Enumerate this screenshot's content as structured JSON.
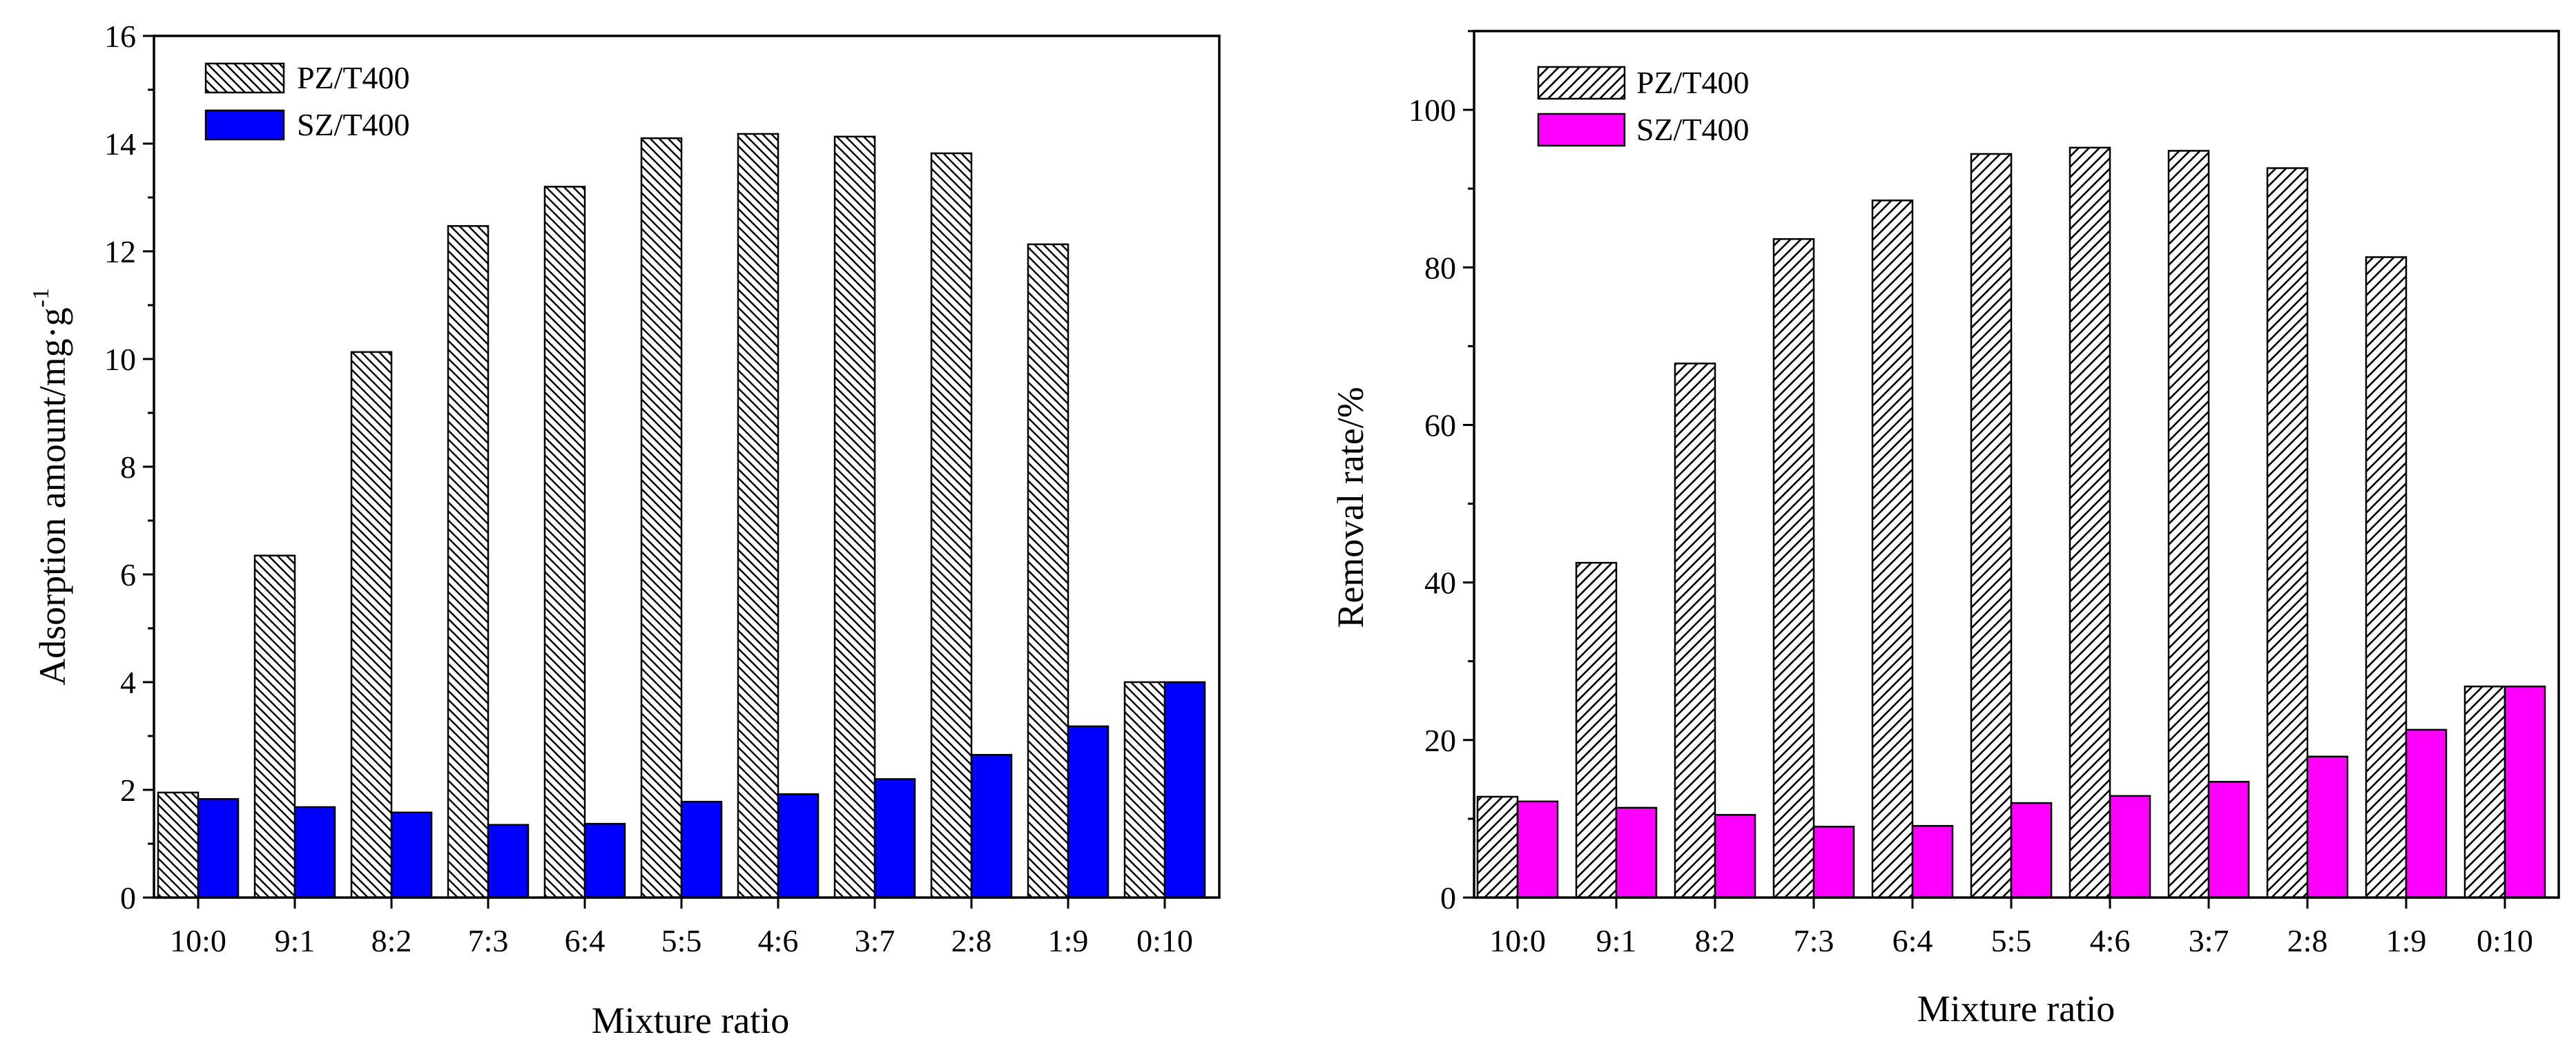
{
  "chart_data": [
    {
      "type": "bar",
      "categories": [
        "10:0",
        "9:1",
        "8:2",
        "7:3",
        "6:4",
        "5:5",
        "4:6",
        "3:7",
        "2:8",
        "1:9",
        "0:10"
      ],
      "series": [
        {
          "name": "PZ/T400",
          "values": [
            1.95,
            6.35,
            10.13,
            12.47,
            13.2,
            14.1,
            14.18,
            14.13,
            13.82,
            12.13,
            4.0
          ],
          "color": "#ffffff",
          "pattern": "backslash-hatch"
        },
        {
          "name": "SZ/T400",
          "values": [
            1.83,
            1.68,
            1.58,
            1.35,
            1.37,
            1.78,
            1.92,
            2.2,
            2.65,
            3.18,
            4.0
          ],
          "color": "#0000ff"
        }
      ],
      "xlabel": "Mixture ratio",
      "ylabel": "Adsorption amount/mg·g",
      "ylabel_sup": "-1",
      "ylim": [
        0,
        16
      ],
      "yticks": [
        "0",
        "2",
        "4",
        "6",
        "8",
        "10",
        "12",
        "14",
        "16"
      ],
      "legend_position": "top-left"
    },
    {
      "type": "bar",
      "categories": [
        "10:0",
        "9:1",
        "8:2",
        "7:3",
        "6:4",
        "5:5",
        "4:6",
        "3:7",
        "2:8",
        "1:9",
        "0:10"
      ],
      "series": [
        {
          "name": "PZ/T400",
          "values": [
            12.8,
            42.5,
            67.8,
            83.6,
            88.5,
            94.4,
            95.2,
            94.8,
            92.6,
            81.3,
            26.8
          ],
          "color": "#ffffff",
          "pattern": "slash-hatch"
        },
        {
          "name": "SZ/T400",
          "values": [
            12.2,
            11.4,
            10.5,
            9.0,
            9.1,
            12.0,
            12.9,
            14.7,
            17.9,
            21.3,
            26.8
          ],
          "color": "#ff00ff"
        }
      ],
      "xlabel": "Mixture ratio",
      "ylabel": "Removal rate/%",
      "ylim": [
        0,
        110
      ],
      "yticks": [
        "0",
        "20",
        "40",
        "60",
        "80",
        "100"
      ],
      "legend_position": "top-left"
    }
  ]
}
